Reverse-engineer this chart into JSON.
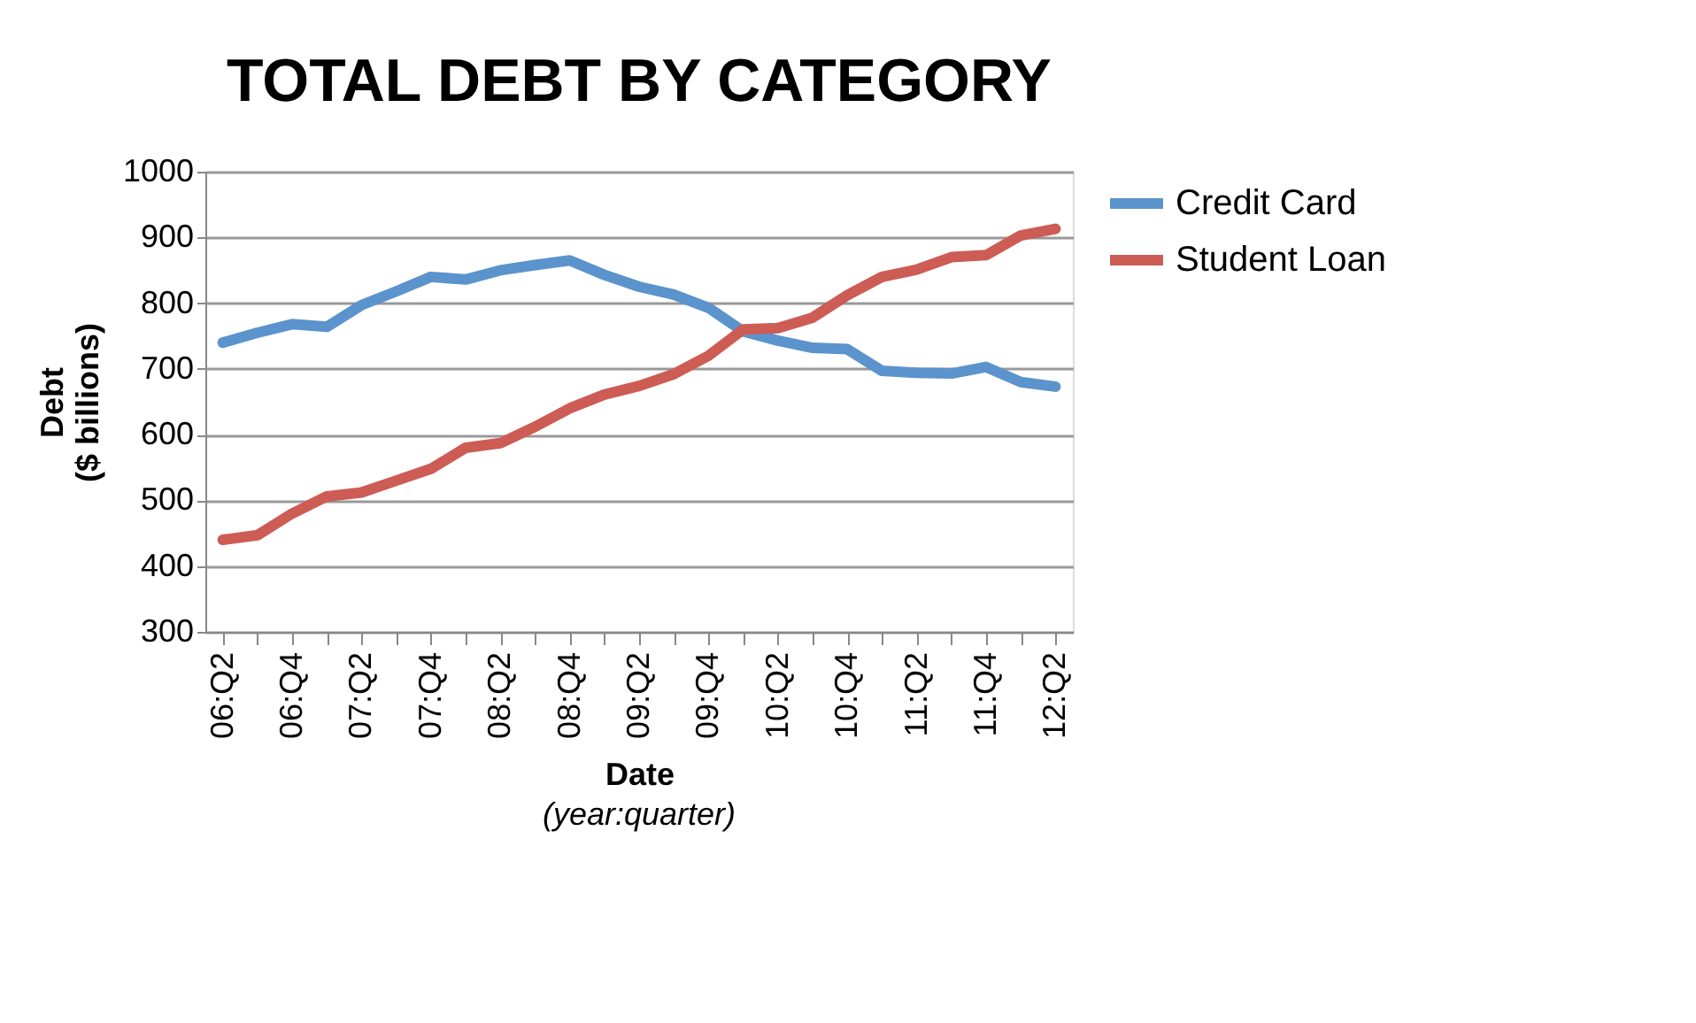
{
  "chart_data": {
    "type": "line",
    "title": "TOTAL DEBT BY CATEGORY",
    "xlabel": "Date",
    "ylabel": "Debt\n($ billions)",
    "annotations": [
      "(year:quarter)"
    ],
    "categories": [
      "06:Q2",
      null,
      "06:Q4",
      null,
      "07:Q2",
      null,
      "07:Q4",
      null,
      "08:Q2",
      null,
      "08:Q4",
      null,
      "09:Q2",
      null,
      "09:Q4",
      null,
      "10:Q2",
      null,
      "10:Q4",
      null,
      "11:Q2",
      null,
      "11:Q4",
      null,
      "12:Q2"
    ],
    "series": [
      {
        "name": "Credit Card",
        "color": "#5b93cc",
        "values": [
          740,
          755,
          768,
          764,
          797,
          818,
          840,
          836,
          850,
          858,
          865,
          843,
          825,
          813,
          793,
          757,
          743,
          732,
          730,
          697,
          694,
          693,
          703,
          680,
          673
        ]
      },
      {
        "name": "Student Loan",
        "color": "#cd5c55",
        "values": [
          440,
          447,
          480,
          506,
          512,
          530,
          548,
          580,
          587,
          612,
          640,
          661,
          674,
          692,
          720,
          760,
          762,
          778,
          812,
          840,
          851,
          870,
          873,
          903,
          913
        ]
      }
    ],
    "ylim": [
      300,
      1000
    ],
    "yticks": [
      300,
      400,
      500,
      600,
      700,
      800,
      900,
      1000
    ],
    "grid": "y",
    "legend": "right",
    "line_style": "solid",
    "marker": "none"
  }
}
